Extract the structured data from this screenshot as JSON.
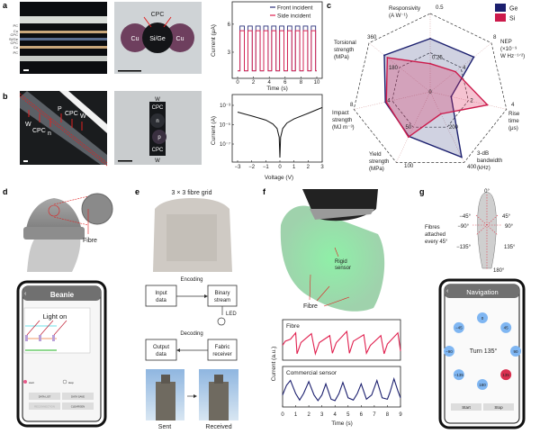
{
  "panel_labels": [
    "a",
    "b",
    "c",
    "d",
    "e",
    "f",
    "g"
  ],
  "panel_a": {
    "layer_labels": [
      "PC",
      "Cu",
      "CPC",
      "Si/Ge",
      "CPC",
      "Cu",
      "PC"
    ],
    "cross_section": {
      "cpc": "CPC",
      "left": "Cu",
      "center": "Si/Ge",
      "right": "Cu"
    }
  },
  "panel_b": {
    "side_labels": {
      "w1": "W",
      "cpc1": "CPC",
      "n": "n",
      "p": "P",
      "cpc2": "CPC",
      "w2": "W"
    },
    "cross_section": [
      "W",
      "CPC",
      "n",
      "p",
      "CPC",
      "W"
    ]
  },
  "panel_d": {
    "fibre_label": "Fibre",
    "app": {
      "title": "Beanie",
      "chart_text": "Light on",
      "radio_start": "start",
      "radio_stop": "stop",
      "buttons": [
        "DATA LIST",
        "DATA SAVE",
        "RECONNECTION",
        "CLEARGEN"
      ]
    }
  },
  "panel_e": {
    "title": "3 × 3 fibre grid",
    "flow": {
      "encoding": "Encoding",
      "decoding": "Decoding",
      "input": [
        "Input",
        "data"
      ],
      "binary": [
        "Binary",
        "stream"
      ],
      "led": "LED",
      "output": [
        "Output",
        "data"
      ],
      "receiver": [
        "Fabric",
        "receiver"
      ]
    },
    "sent": "Sent",
    "received": "Received"
  },
  "panel_f": {
    "rigid_sensor": [
      "Rigid",
      "sensor"
    ],
    "fibre": "Fibre"
  },
  "panel_g": {
    "fibres_note": [
      "Fibres",
      "attached",
      "every 45°"
    ],
    "angles": [
      "0°",
      "−45°",
      "45°",
      "−90°",
      "90°",
      "−135°",
      "135°",
      "180°"
    ],
    "app": {
      "title": "Navigation",
      "buttons": [
        {
          "label": "0",
          "angle": 0,
          "active": false
        },
        {
          "label": "−45",
          "angle": -45,
          "active": false
        },
        {
          "label": "45",
          "angle": 45,
          "active": false
        },
        {
          "label": "−90",
          "angle": -90,
          "active": false
        },
        {
          "label": "90",
          "angle": 90,
          "active": false
        },
        {
          "label": "−135",
          "angle": -135,
          "active": false
        },
        {
          "label": "135",
          "angle": 135,
          "active": true
        },
        {
          "label": "180",
          "angle": 180,
          "active": false
        }
      ],
      "status": "Turn 135°",
      "start": "Start",
      "stop": "Stop"
    }
  },
  "colors": {
    "ge": "#1b1f6e",
    "si": "#cc1a4b",
    "front": "#2a2f7a",
    "side": "#e0204f",
    "button_blue": "#7fb6f2",
    "button_red": "#d9304f"
  },
  "chart_data": [
    {
      "id": "a",
      "type": "line",
      "xlabel": "Time (s)",
      "ylabel": "Current (μA)",
      "xlim": [
        0,
        10
      ],
      "ylim": [
        0.2,
        8.4
      ],
      "xticks": [
        "0",
        "2",
        "4",
        "6",
        "8",
        "10"
      ],
      "yticks": [
        "3",
        "6"
      ],
      "legend": "top-right",
      "series": [
        {
          "name": "Front incident",
          "high": 5.8,
          "low": 1.0,
          "period": 1,
          "on_start": 0.3,
          "duty": 0.55
        },
        {
          "name": "Side incident",
          "high": 5.3,
          "low": 1.0,
          "period": 1,
          "on_start": 0.3,
          "duty": 0.55
        }
      ]
    },
    {
      "id": "b",
      "type": "line",
      "xlabel": "Voltage (V)",
      "ylabel": "Current (A)",
      "yscale": "log",
      "xlim": [
        -3,
        3
      ],
      "ylim": [
        1e-09,
        0.01
      ],
      "xticks": [
        "−3",
        "−2",
        "−1",
        "0",
        "1",
        "2",
        "3"
      ],
      "yticks": [
        "10⁻³",
        "10⁻⁵",
        "10⁻⁷"
      ],
      "x": [
        -3,
        -2,
        -1,
        -0.5,
        -0.2,
        -0.05,
        0,
        0.05,
        0.2,
        0.5,
        1,
        2,
        3
      ],
      "y": [
        0.0002,
        8e-05,
        3e-05,
        1.2e-05,
        4e-06,
        5e-07,
        4e-09,
        5e-07,
        4e-06,
        1.5e-05,
        4e-05,
        0.00015,
        0.0006
      ]
    },
    {
      "id": "c",
      "type": "radar",
      "legend": "top-right",
      "center_label": "0",
      "axes": [
        {
          "name": [
            "Responsivity",
            "(A W⁻¹)"
          ],
          "max": 0.5,
          "max_label": "0.5",
          "mid_label": "0.25"
        },
        {
          "name": [
            "NEP",
            "(×10⁻⁹",
            "W Hz⁻¹ᐟ²)"
          ],
          "max": 8,
          "max_label": "8",
          "mid_label": "4"
        },
        {
          "name": [
            "Rise",
            "time",
            "(μs)"
          ],
          "max": 4,
          "max_label": "4",
          "mid_label": "2"
        },
        {
          "name": [
            "3-dB",
            "bandwidth",
            "(kHz)"
          ],
          "max": 400,
          "max_label": "400",
          "mid_label": "200"
        },
        {
          "name": [
            "Yield",
            "strength",
            "(MPa)"
          ],
          "max": 100,
          "max_label": "100",
          "mid_label": "50"
        },
        {
          "name": [
            "Impact",
            "strength",
            "(MJ m⁻³)"
          ],
          "max": 8,
          "max_label": "8",
          "mid_label": "4"
        },
        {
          "name": [
            "Torsional",
            "strength",
            "(MPa)"
          ],
          "max": 360,
          "max_label": "360",
          "mid_label": "180"
        }
      ],
      "series": [
        {
          "name": "Ge",
          "values": [
            0.34,
            5.7,
            1.1,
            370,
            63,
            4.7,
            270
          ]
        },
        {
          "name": "Si",
          "values": [
            0.18,
            3.3,
            3.0,
            125,
            64,
            4.6,
            252
          ]
        }
      ]
    },
    {
      "id": "f",
      "type": "line",
      "xlabel": "Time (s)",
      "ylabel": "Current (a.u.)",
      "xlim": [
        0,
        9
      ],
      "xticks": [
        "0",
        "1",
        "2",
        "3",
        "4",
        "5",
        "6",
        "7",
        "8",
        "9"
      ],
      "panels": [
        {
          "name": "Fibre",
          "t": [
            0,
            0.2,
            0.6,
            1.0,
            1.1,
            1.4,
            2.2,
            2.5,
            2.8,
            3.6,
            3.8,
            4.1,
            4.9,
            5.1,
            5.4,
            6.2,
            6.4,
            6.7,
            7.5,
            7.75,
            8.0,
            8.8,
            9.0
          ],
          "v": [
            0.4,
            0.55,
            0.62,
            0.85,
            0.1,
            0.5,
            0.82,
            0.1,
            0.5,
            0.75,
            0.12,
            0.5,
            0.9,
            0.12,
            0.55,
            0.78,
            0.12,
            0.4,
            0.75,
            0.1,
            0.45,
            0.85,
            0.2
          ]
        },
        {
          "name": "Commercial sensor",
          "t": [
            0,
            0.3,
            0.6,
            1.0,
            1.3,
            1.6,
            2.0,
            2.4,
            2.7,
            3.0,
            3.3,
            3.7,
            4.0,
            4.3,
            4.6,
            5.0,
            5.4,
            5.7,
            6.0,
            6.4,
            6.8,
            7.2,
            7.6,
            8.0,
            8.2,
            8.5,
            8.8,
            9.0
          ],
          "v": [
            0.3,
            0.65,
            0.82,
            0.35,
            0.12,
            0.35,
            0.78,
            0.3,
            0.1,
            0.3,
            0.7,
            0.15,
            0.1,
            0.35,
            0.75,
            0.2,
            0.12,
            0.35,
            0.7,
            0.15,
            0.3,
            0.82,
            0.2,
            0.15,
            0.4,
            0.88,
            0.45,
            0.2
          ]
        }
      ]
    }
  ]
}
